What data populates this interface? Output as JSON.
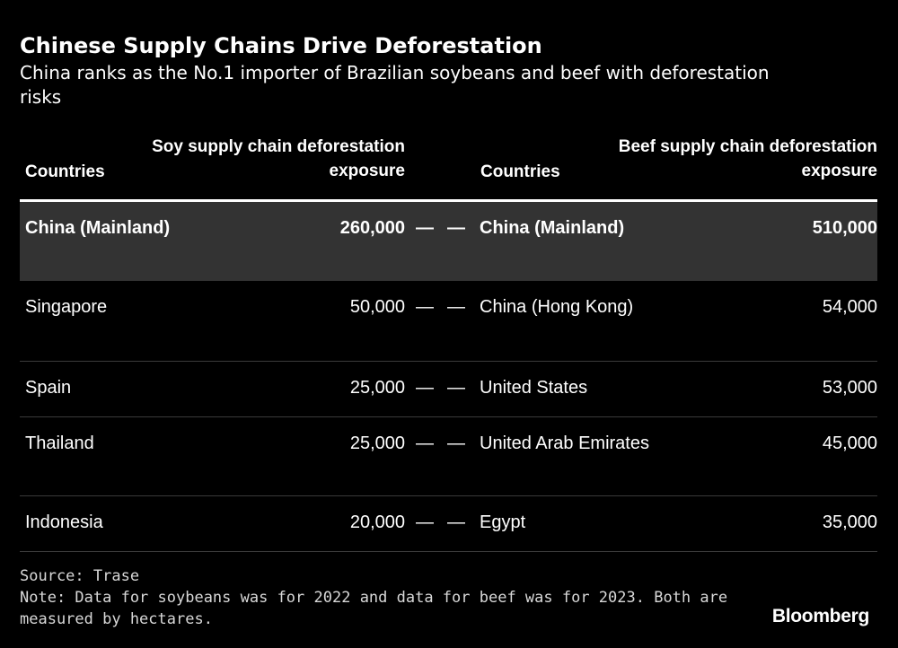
{
  "title": "Chinese Supply Chains Drive Deforestation",
  "subtitle": "China ranks as the No.1 importer of Brazilian soybeans and beef with deforestation risks",
  "chart_data": {
    "type": "table",
    "columns": [
      "Countries",
      "Soy supply chain deforestation exposure",
      "",
      "",
      "Countries",
      "Beef supply chain deforestation exposure"
    ],
    "header": {
      "soy_country": "Countries",
      "soy_value": "Soy supply chain deforestation exposure",
      "beef_country": "Countries",
      "beef_value": "Beef supply chain deforestation exposure"
    },
    "rows": [
      {
        "soy_country": "China (Mainland)",
        "soy_value": "260,000",
        "sep1": "—",
        "sep2": "—",
        "beef_country": "China (Mainland)",
        "beef_value": "510,000",
        "highlighted": true
      },
      {
        "soy_country": "Singapore",
        "soy_value": "50,000",
        "sep1": "—",
        "sep2": "—",
        "beef_country": "China (Hong Kong)",
        "beef_value": "54,000"
      },
      {
        "soy_country": "Spain",
        "soy_value": "25,000",
        "sep1": "—",
        "sep2": "—",
        "beef_country": "United States",
        "beef_value": "53,000"
      },
      {
        "soy_country": "Thailand",
        "soy_value": "25,000",
        "sep1": "—",
        "sep2": "—",
        "beef_country": "United Arab Emirates",
        "beef_value": "45,000"
      },
      {
        "soy_country": "Indonesia",
        "soy_value": "20,000",
        "sep1": "—",
        "sep2": "—",
        "beef_country": "Egypt",
        "beef_value": "35,000"
      }
    ]
  },
  "source": "Source: Trase",
  "note": "Note: Data for soybeans was for 2022 and data for beef was for 2023. Both are measured by hectares.",
  "logo": "Bloomberg",
  "colors": {
    "background": "#000000",
    "highlight_row": "#333333",
    "text": "#ffffff"
  }
}
